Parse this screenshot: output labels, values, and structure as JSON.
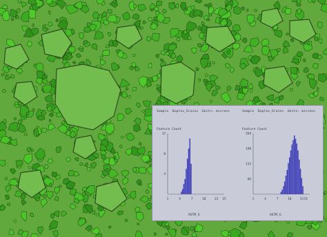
{
  "panel": {
    "charts": [
      {
        "header": "Sample  Duplex_Grains  Units: microns",
        "feature_label": "Feature Count",
        "xlabel": "ASTM_G"
      },
      {
        "header": "Sample  Duplex_Grains  Units: microns",
        "feature_label": "Feature Count",
        "xlabel": "ASTM_G"
      }
    ]
  },
  "chart_data": [
    {
      "type": "bar",
      "title": "",
      "xlabel": "ASTM_G",
      "ylabel": "Feature Count",
      "xlim": [
        1,
        15
      ],
      "ylim": [
        0,
        12
      ],
      "xticks": [
        "1",
        "4",
        "7",
        "10",
        "13",
        "15"
      ],
      "yticks": [
        "12",
        "8",
        "4"
      ],
      "x": [
        4.4,
        4.7,
        5.0,
        5.3,
        5.6,
        5.9,
        6.2,
        6.5,
        6.8
      ],
      "values": [
        0.5,
        1,
        2,
        3,
        5,
        7,
        9,
        11,
        6
      ]
    },
    {
      "type": "bar",
      "title": "",
      "xlabel": "ASTM_G",
      "ylabel": "Feature Count",
      "xlim": [
        1,
        15
      ],
      "ylim": [
        0,
        264
      ],
      "xticks": [
        "1",
        "4",
        "7",
        "10",
        "13",
        "14"
      ],
      "yticks": [
        "264",
        "198",
        "132",
        "66"
      ],
      "x": [
        7.9,
        8.2,
        8.5,
        8.8,
        9.1,
        9.4,
        9.7,
        10.0,
        10.3,
        10.6,
        10.9,
        11.2,
        11.5,
        11.8,
        12.1,
        12.4,
        12.7,
        13.0,
        13.3
      ],
      "values": [
        10,
        20,
        35,
        55,
        80,
        105,
        135,
        160,
        190,
        215,
        235,
        255,
        240,
        220,
        190,
        150,
        110,
        70,
        35
      ]
    }
  ],
  "colors": {
    "micrograph": "#62a93d",
    "grain_boundary": "#203018",
    "panel_bg": "#c9ccd8",
    "bar": "#3d3db8",
    "text": "#303346"
  }
}
